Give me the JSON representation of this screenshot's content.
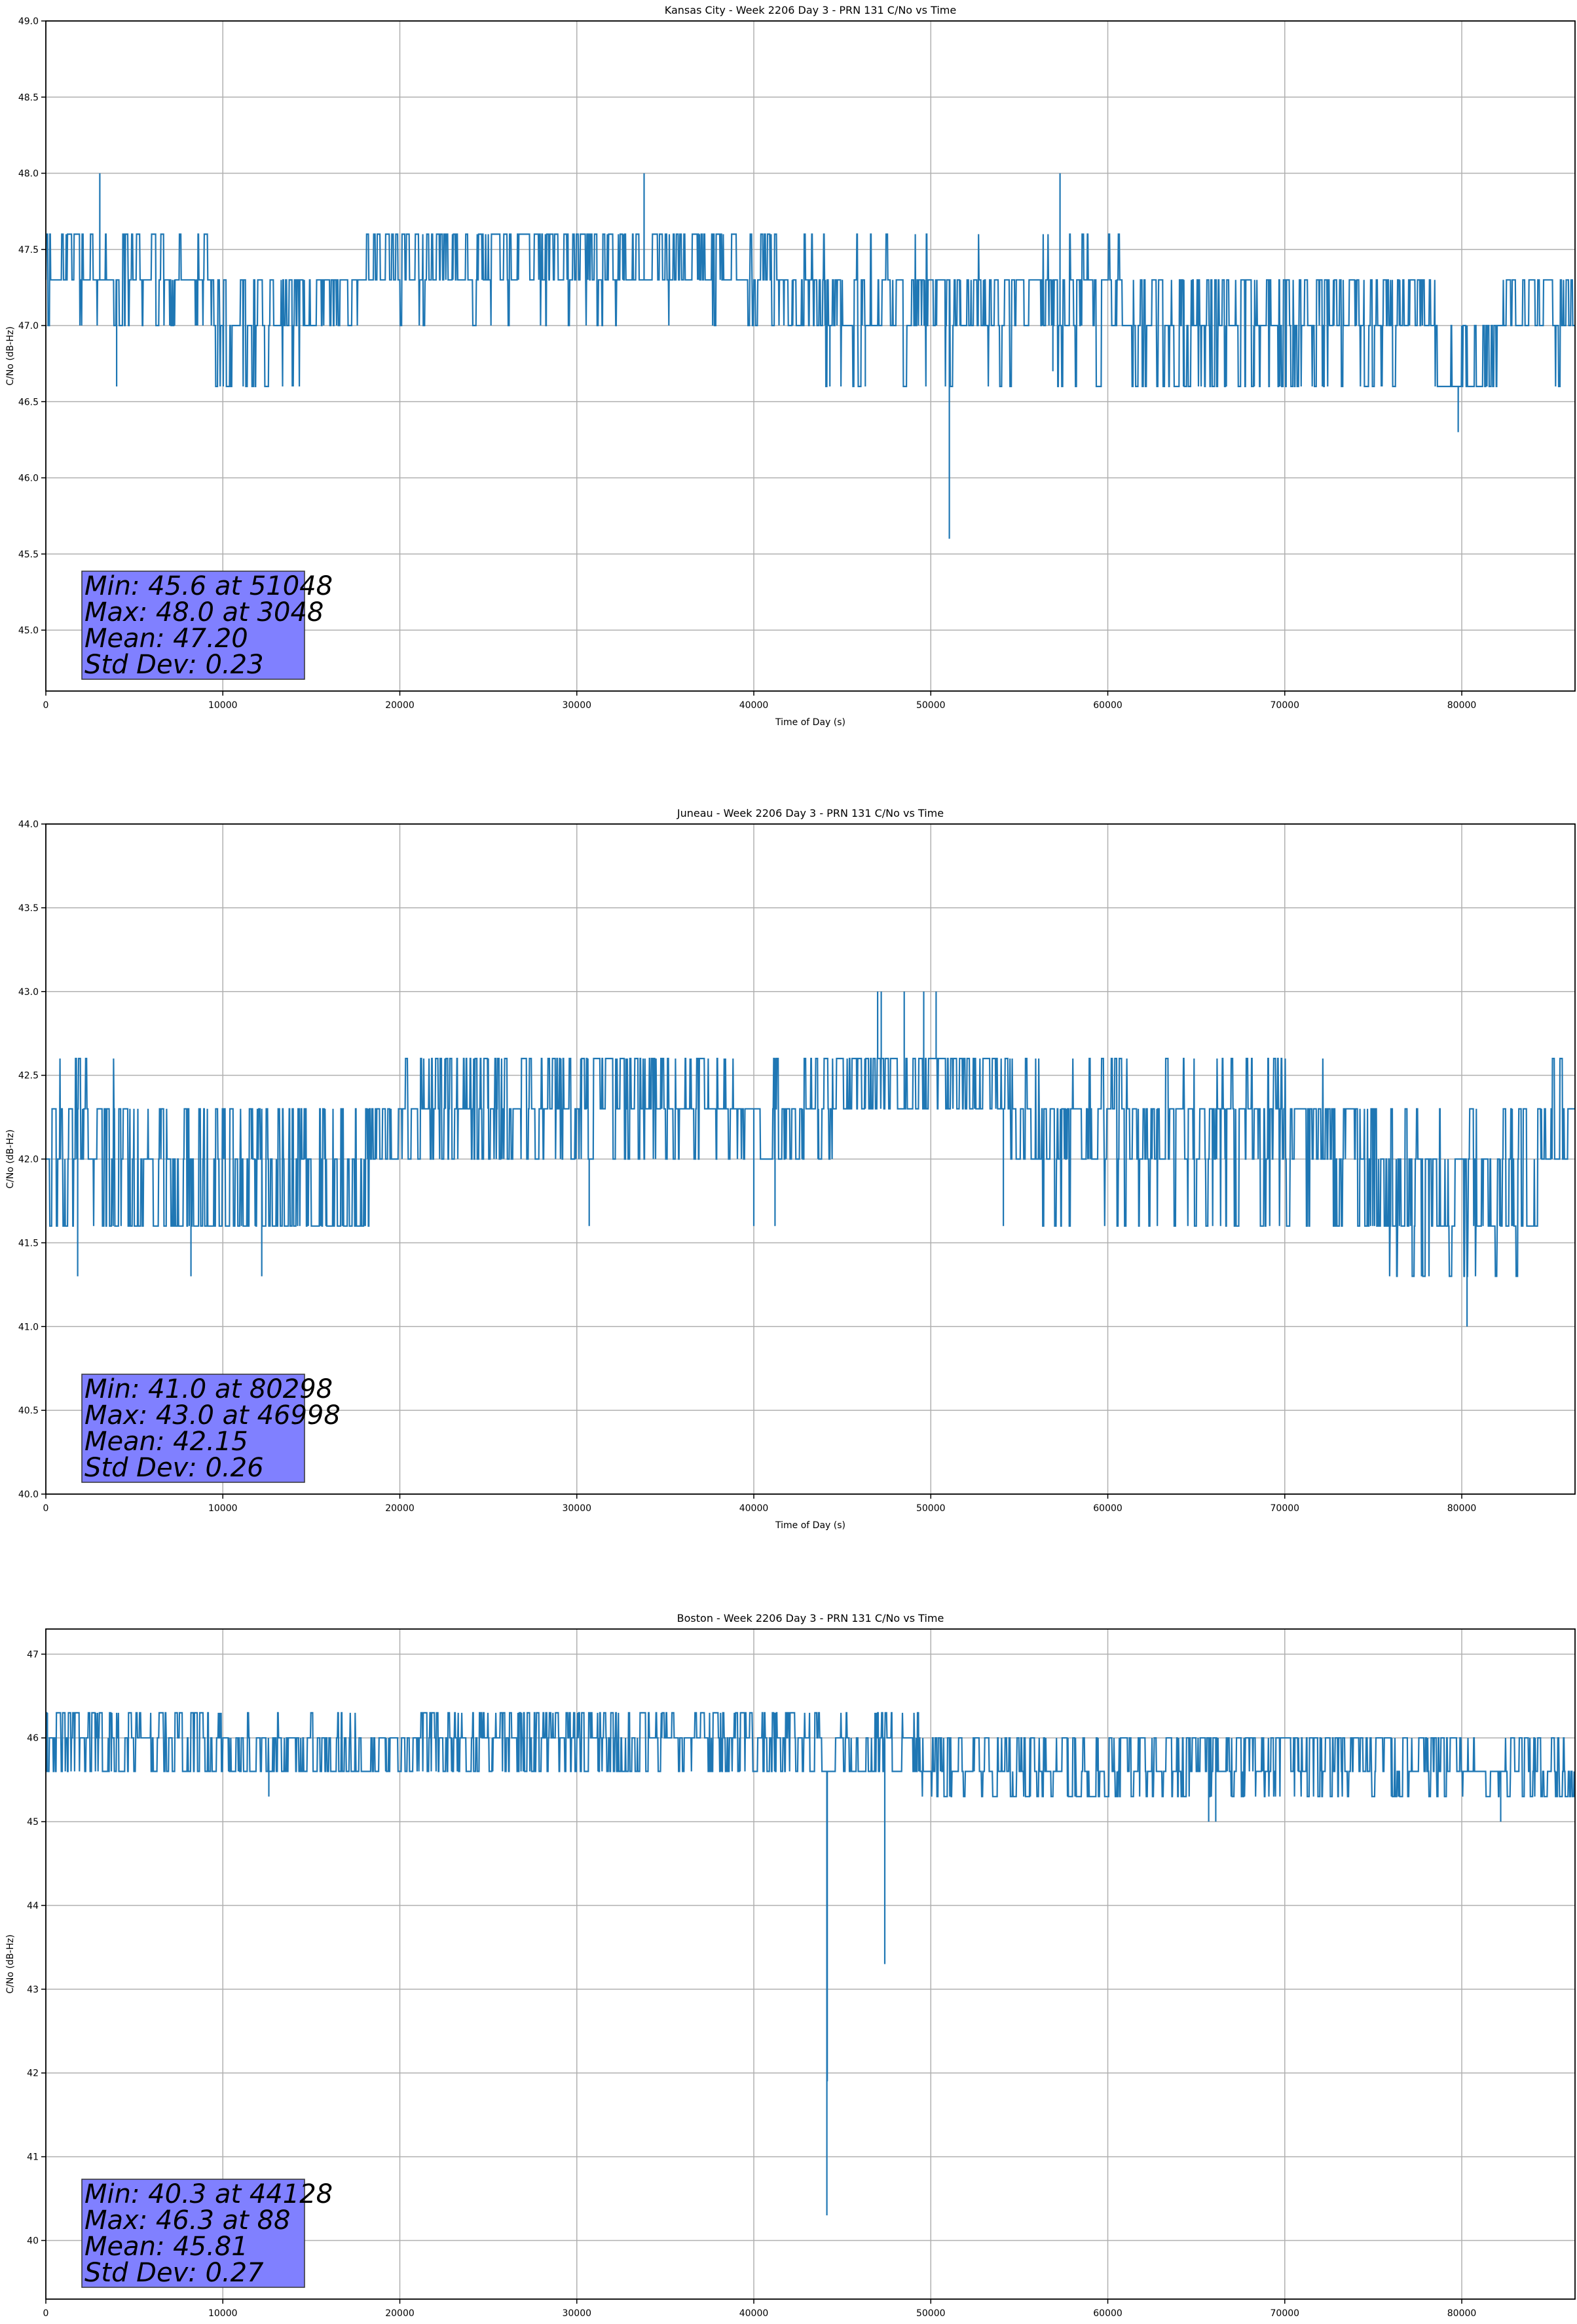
{
  "chart_data": [
    {
      "type": "line",
      "title": "Kansas City - Week 2206 Day 3 - PRN 131 C/No vs Time",
      "xlabel": "Time of Day (s)",
      "ylabel": "C/No (dB-Hz)",
      "xlim": [
        0,
        86400
      ],
      "ylim": [
        44.6,
        49.0
      ],
      "xticks": [
        0,
        10000,
        20000,
        30000,
        40000,
        50000,
        60000,
        70000,
        80000
      ],
      "yticks": [
        45.0,
        45.5,
        46.0,
        46.5,
        47.0,
        47.5,
        48.0,
        48.5,
        49.0
      ],
      "ytick_decimals": 1,
      "grid": true,
      "line_color": "#1f77b4",
      "segments": [
        {
          "x": [
            0,
            5500
          ],
          "levels": [
            47.3,
            47.6,
            47.0
          ],
          "weights": [
            0.55,
            0.3,
            0.15
          ]
        },
        {
          "x": [
            5500,
            9500
          ],
          "levels": [
            47.3,
            47.0,
            47.6
          ],
          "weights": [
            0.6,
            0.3,
            0.1
          ]
        },
        {
          "x": [
            9500,
            14800
          ],
          "levels": [
            47.0,
            47.3,
            46.6
          ],
          "weights": [
            0.5,
            0.25,
            0.25
          ]
        },
        {
          "x": [
            14800,
            18000
          ],
          "levels": [
            47.0,
            47.3
          ],
          "weights": [
            0.5,
            0.5
          ]
        },
        {
          "x": [
            18000,
            39000
          ],
          "levels": [
            47.3,
            47.6,
            47.0
          ],
          "weights": [
            0.5,
            0.45,
            0.05
          ]
        },
        {
          "x": [
            39000,
            44000
          ],
          "levels": [
            47.3,
            47.6,
            47.0
          ],
          "weights": [
            0.6,
            0.2,
            0.2
          ]
        },
        {
          "x": [
            44000,
            61000
          ],
          "levels": [
            47.3,
            47.0,
            47.6,
            46.6
          ],
          "weights": [
            0.5,
            0.4,
            0.05,
            0.05
          ]
        },
        {
          "x": [
            61000,
            76500
          ],
          "levels": [
            47.0,
            47.3,
            46.6
          ],
          "weights": [
            0.45,
            0.3,
            0.25
          ]
        },
        {
          "x": [
            76500,
            78500
          ],
          "levels": [
            47.0,
            47.3
          ],
          "weights": [
            0.6,
            0.4
          ]
        },
        {
          "x": [
            78500,
            82000
          ],
          "levels": [
            46.6,
            47.0
          ],
          "weights": [
            0.7,
            0.3
          ]
        },
        {
          "x": [
            82000,
            86400
          ],
          "levels": [
            47.0,
            47.3,
            46.6
          ],
          "weights": [
            0.5,
            0.4,
            0.1
          ]
        }
      ],
      "spikes": [
        [
          3048,
          48.0
        ],
        [
          33800,
          48.0
        ],
        [
          57300,
          48.0
        ],
        [
          51048,
          45.6
        ],
        [
          79800,
          46.3
        ],
        [
          4000,
          46.6
        ],
        [
          44300,
          46.6
        ],
        [
          46300,
          46.6
        ],
        [
          56900,
          46.7
        ]
      ],
      "stats": [
        "Min: 45.6 at 51048",
        "Max: 48.0 at 3048",
        "Mean: 47.20",
        "Std Dev: 0.23"
      ]
    },
    {
      "type": "line",
      "title": "Juneau - Week 2206 Day 3 - PRN 131 C/No vs Time",
      "xlabel": "Time of Day (s)",
      "ylabel": "C/No (dB-Hz)",
      "xlim": [
        0,
        86400
      ],
      "ylim": [
        40.0,
        44.0
      ],
      "xticks": [
        0,
        10000,
        20000,
        30000,
        40000,
        50000,
        60000,
        70000,
        80000
      ],
      "yticks": [
        40.0,
        40.5,
        41.0,
        41.5,
        42.0,
        42.5,
        43.0,
        43.5,
        44.0
      ],
      "ytick_decimals": 1,
      "grid": true,
      "line_color": "#1f77b4",
      "segments": [
        {
          "x": [
            0,
            5000
          ],
          "levels": [
            42.0,
            42.3,
            41.6,
            42.6
          ],
          "weights": [
            0.4,
            0.3,
            0.25,
            0.05
          ]
        },
        {
          "x": [
            5000,
            18500
          ],
          "levels": [
            41.6,
            42.0,
            42.3
          ],
          "weights": [
            0.4,
            0.35,
            0.25
          ]
        },
        {
          "x": [
            18500,
            20000
          ],
          "levels": [
            42.0,
            42.3
          ],
          "weights": [
            0.5,
            0.5
          ]
        },
        {
          "x": [
            20000,
            38500
          ],
          "levels": [
            42.3,
            42.6,
            42.0
          ],
          "weights": [
            0.45,
            0.4,
            0.15
          ]
        },
        {
          "x": [
            38500,
            44500
          ],
          "levels": [
            42.3,
            42.0,
            42.6
          ],
          "weights": [
            0.5,
            0.35,
            0.15
          ]
        },
        {
          "x": [
            44500,
            46500
          ],
          "levels": [
            42.3,
            42.6
          ],
          "weights": [
            0.5,
            0.5
          ]
        },
        {
          "x": [
            46500,
            54500
          ],
          "levels": [
            42.3,
            42.6
          ],
          "weights": [
            0.4,
            0.6
          ]
        },
        {
          "x": [
            54500,
            72500
          ],
          "levels": [
            42.3,
            42.0,
            42.6,
            41.6
          ],
          "weights": [
            0.45,
            0.35,
            0.1,
            0.1
          ]
        },
        {
          "x": [
            72500,
            75000
          ],
          "levels": [
            42.0,
            42.3,
            41.6
          ],
          "weights": [
            0.4,
            0.3,
            0.3
          ]
        },
        {
          "x": [
            75000,
            84500
          ],
          "levels": [
            41.6,
            42.0,
            41.3,
            42.3
          ],
          "weights": [
            0.45,
            0.3,
            0.1,
            0.15
          ]
        },
        {
          "x": [
            84500,
            86400
          ],
          "levels": [
            42.3,
            42.0,
            42.6
          ],
          "weights": [
            0.45,
            0.4,
            0.15
          ]
        }
      ],
      "spikes": [
        [
          46998,
          43.0
        ],
        [
          47200,
          43.0
        ],
        [
          48500,
          43.0
        ],
        [
          49600,
          43.0
        ],
        [
          50300,
          43.0
        ],
        [
          80298,
          41.0
        ],
        [
          1800,
          41.3
        ],
        [
          8200,
          41.3
        ],
        [
          12200,
          41.3
        ],
        [
          30700,
          41.6
        ],
        [
          40000,
          41.6
        ],
        [
          41200,
          41.6
        ],
        [
          54100,
          41.6
        ]
      ],
      "stats": [
        "Min: 41.0 at 80298",
        "Max: 43.0 at 46998",
        "Mean: 42.15",
        "Std Dev: 0.26"
      ]
    },
    {
      "type": "line",
      "title": "Boston - Week 2206 Day 3 - PRN 131 C/No vs Time",
      "xlabel": "Time of Day (s)",
      "ylabel": "C/No (dB-Hz)",
      "xlim": [
        0,
        86400
      ],
      "ylim": [
        39.3,
        47.3
      ],
      "xticks": [
        0,
        10000,
        20000,
        30000,
        40000,
        50000,
        60000,
        70000,
        80000
      ],
      "yticks": [
        40,
        41,
        42,
        43,
        44,
        45,
        46,
        47
      ],
      "ytick_decimals": 0,
      "grid": true,
      "line_color": "#1f77b4",
      "segments": [
        {
          "x": [
            0,
            9000
          ],
          "levels": [
            45.6,
            46.0,
            46.3
          ],
          "weights": [
            0.4,
            0.35,
            0.25
          ]
        },
        {
          "x": [
            9000,
            18500
          ],
          "levels": [
            45.6,
            46.0,
            46.3
          ],
          "weights": [
            0.5,
            0.4,
            0.1
          ]
        },
        {
          "x": [
            18500,
            21000
          ],
          "levels": [
            45.6,
            46.0
          ],
          "weights": [
            0.5,
            0.5
          ]
        },
        {
          "x": [
            21000,
            44000
          ],
          "levels": [
            46.0,
            45.6,
            46.3
          ],
          "weights": [
            0.4,
            0.3,
            0.3
          ]
        },
        {
          "x": [
            44000,
            49500
          ],
          "levels": [
            45.6,
            46.0,
            46.3
          ],
          "weights": [
            0.45,
            0.4,
            0.15
          ]
        },
        {
          "x": [
            49500,
            65000
          ],
          "levels": [
            45.6,
            46.0,
            45.3
          ],
          "weights": [
            0.4,
            0.4,
            0.2
          ]
        },
        {
          "x": [
            65000,
            69000
          ],
          "levels": [
            45.6,
            46.0,
            45.3
          ],
          "weights": [
            0.5,
            0.35,
            0.15
          ]
        },
        {
          "x": [
            69000,
            80000
          ],
          "levels": [
            45.6,
            46.0,
            45.3
          ],
          "weights": [
            0.35,
            0.5,
            0.15
          ]
        },
        {
          "x": [
            80000,
            86400
          ],
          "levels": [
            45.6,
            45.3,
            46.0
          ],
          "weights": [
            0.6,
            0.25,
            0.15
          ]
        }
      ],
      "spikes": [
        [
          44128,
          40.3
        ],
        [
          44150,
          41.9
        ],
        [
          47400,
          43.3
        ],
        [
          12600,
          45.3
        ],
        [
          65700,
          45.0
        ],
        [
          66100,
          45.0
        ],
        [
          82200,
          45.0
        ],
        [
          88,
          46.3
        ]
      ],
      "stats": [
        "Min: 40.3 at 44128",
        "Max: 46.3 at 88",
        "Mean: 45.81",
        "Std Dev: 0.27"
      ]
    }
  ]
}
